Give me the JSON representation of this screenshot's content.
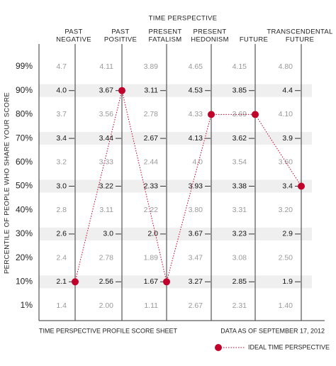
{
  "chart_data": {
    "type": "profile",
    "title": "TIME PERSPECTIVE",
    "y_label": "PERCENTILE OF PEOPLE WHO SHARE YOUR SCORE",
    "percentiles": [
      "99%",
      "90%",
      "80%",
      "70%",
      "60%",
      "50%",
      "40%",
      "30%",
      "20%",
      "10%",
      "1%"
    ],
    "columns": [
      {
        "name": [
          "PAST",
          "NEGATIVE"
        ],
        "scores": [
          4.7,
          {
            "value": 4,
            "label": "4.0"
          },
          3.7,
          3.4,
          3.2,
          {
            "value": 3,
            "label": "3.0"
          },
          2.8,
          2.6,
          2.4,
          2.1,
          1.4
        ]
      },
      {
        "name": [
          "PAST",
          "POSITIVE"
        ],
        "scores": [
          4.11,
          3.67,
          3.56,
          3.44,
          3.33,
          3.22,
          3.11,
          {
            "value": 3,
            "label": "3.0"
          },
          2.78,
          2.56,
          {
            "value": 2,
            "label": "2.00"
          }
        ]
      },
      {
        "name": [
          "PRESENT",
          "FATALISM"
        ],
        "scores": [
          3.89,
          3.11,
          2.78,
          2.67,
          2.44,
          2.33,
          2.22,
          {
            "value": 2,
            "label": "2.0"
          },
          1.89,
          1.67,
          1.11
        ]
      },
      {
        "name": [
          "PRESENT",
          "HEDONISM"
        ],
        "scores": [
          4.65,
          4.53,
          4.33,
          4.13,
          {
            "value": 4,
            "label": "4.0"
          },
          3.93,
          {
            "value": 3.8,
            "label": "3.80"
          },
          3.67,
          3.47,
          3.27,
          2.67
        ]
      },
      {
        "name": [
          "FUTURE"
        ],
        "scores": [
          4.15,
          3.85,
          3.69,
          3.62,
          3.54,
          3.38,
          3.31,
          3.23,
          3.08,
          2.85,
          2.31
        ]
      },
      {
        "name": [
          "TRANSCENDENTAL",
          "FUTURE"
        ],
        "scores": [
          {
            "value": 4.8,
            "label": "4.80"
          },
          4.4,
          {
            "value": 4.1,
            "label": "4.10"
          },
          3.9,
          {
            "value": 3.6,
            "label": "3.60"
          },
          3.4,
          {
            "value": 3.2,
            "label": "3.20"
          },
          2.9,
          {
            "value": 2.5,
            "label": "2.50"
          },
          1.9,
          {
            "value": 1.4,
            "label": "1.40"
          }
        ]
      }
    ],
    "series": [
      {
        "name": "IDEAL TIME PERSPECTIVE",
        "color": "#c0002a",
        "values": [
          2.1,
          3.67,
          1.67,
          4.33,
          3.69,
          3.4
        ]
      }
    ],
    "footer_left": "TIME PERSPECTIVE PROFILE SCORE SHEET",
    "footer_right": "DATA AS OF SEPTEMBER 17, 2012"
  }
}
